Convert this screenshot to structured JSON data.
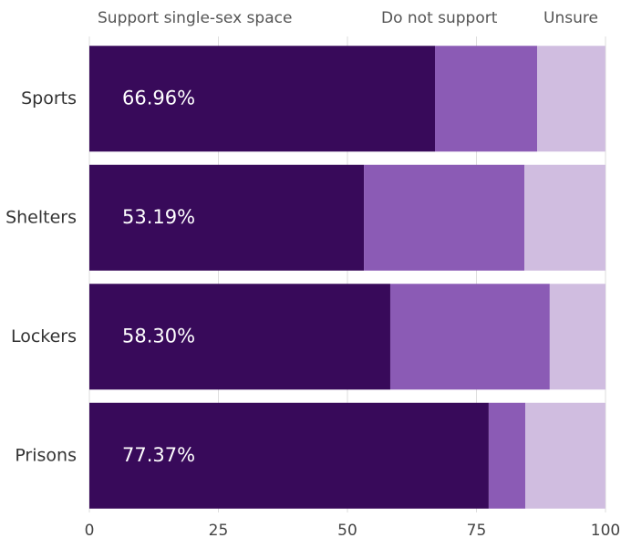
{
  "chart_data": {
    "type": "stacked-bar-horizontal",
    "categories": [
      "Sports",
      "Shelters",
      "Lockers",
      "Prisons"
    ],
    "series": [
      {
        "name": "Support single-sex space",
        "color": "#380a5a",
        "values": [
          66.96,
          53.19,
          58.3,
          77.37
        ],
        "value_labels": [
          "66.96%",
          "53.19%",
          "58.30%",
          "77.37%"
        ]
      },
      {
        "name": "Do not support",
        "color": "#8b5bb5",
        "values": [
          19.8,
          31.1,
          30.9,
          7.1
        ]
      },
      {
        "name": "Unsure",
        "color": "#d0bde0",
        "values": [
          13.2,
          15.7,
          10.8,
          15.5
        ]
      }
    ],
    "xlim": [
      0,
      100
    ],
    "xticks": [
      0,
      25,
      50,
      75,
      100
    ],
    "grid": true
  }
}
